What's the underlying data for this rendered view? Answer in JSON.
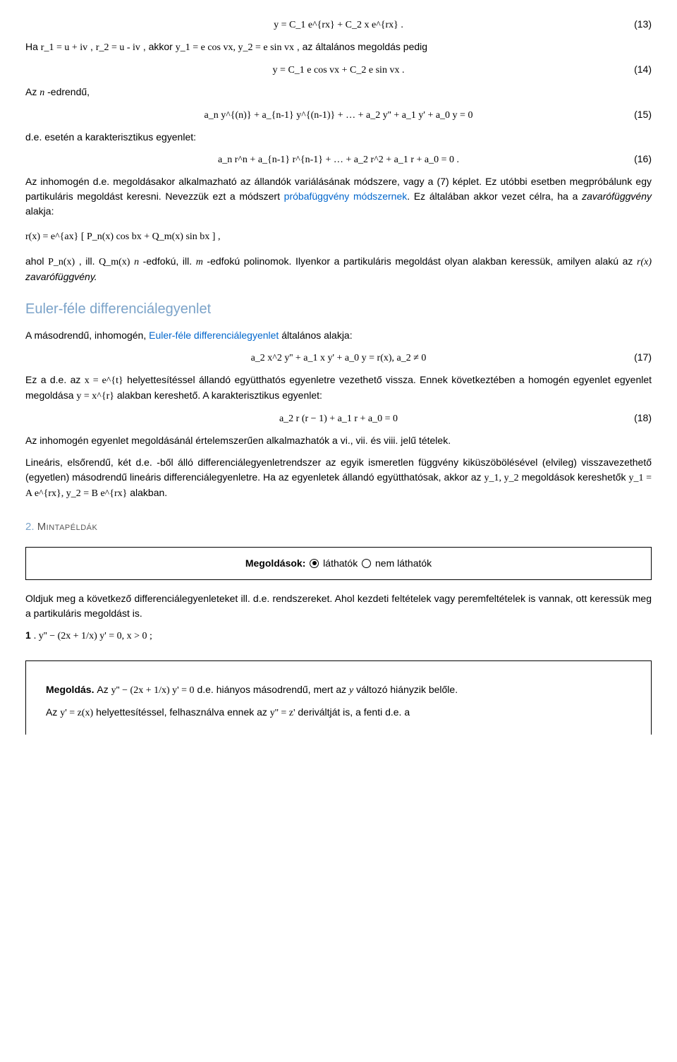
{
  "eq13": {
    "formula": "y = C_1 e^{rx} + C_2 x e^{rx} .",
    "num": "(13)"
  },
  "p_ha": {
    "t1": "Ha  ",
    "m1": "r_1 = u + iv",
    "t2": ",  ",
    "m2": "r_2 = u - iv",
    "t3": ",  akkor  ",
    "m3": "y_1 = e    cos vx,  y_2 = e    sin vx",
    "t4": ", az általános megoldás pedig"
  },
  "eq14": {
    "formula": "y = C_1 e    cos vx + C_2 e    sin vx .",
    "num": "(14)"
  },
  "p_n": {
    "t1": "Az  ",
    "m1": "n",
    "t2": " -edrendű,"
  },
  "eq15": {
    "formula": "a_n y^{(n)} + a_{n-1} y^{(n-1)} + … + a_2 y'' + a_1 y' + a_0 y = 0",
    "num": "(15)"
  },
  "p_de": {
    "t1": "d.e. esetén a karakterisztikus egyenlet:"
  },
  "eq16": {
    "formula": "a_n r^n + a_{n-1} r^{n-1} + … + a_2 r^2 + a_1 r + a_0 = 0 .",
    "num": "(16)"
  },
  "p_inhom": "Az inhomogén d.e. megoldásakor alkalmazható az állandók variálásának módszere, vagy a  (7)  képlet. Ez utóbbi esetben megpróbálunk egy partikuláris megoldást keresni. Nevezzük ezt a módszert ",
  "link_probe": "próbafüggvény módszernek",
  "p_inhom2": ". Ez általában akkor vezet célra, ha a ",
  "em_zav": "zavarófüggvény",
  "p_inhom3": " alakja:",
  "eq_rx": {
    "formula": "r(x) = e^{ax} [ P_n(x) cos bx + Q_m(x) sin bx ] ,"
  },
  "p_ahol": {
    "t1": "ahol  ",
    "m1": "P_n(x)",
    "t2": ",  ill.  ",
    "m2": "Q_m(x)",
    "t3": "   ",
    "m3": "n",
    "t4": " -edfokú, ill.  ",
    "m4": "m",
    "t5": " -edfokú polinomok. Ilyenkor a partikuláris megoldást olyan alakban keressük, amilyen alakú az  ",
    "m5": "r(x)",
    "t6": "  ",
    "em": "zavarófüggvény."
  },
  "h_euler": "Euler-féle differenciálegyenlet",
  "p_euler1_a": "A másodrendű, inhomogén, ",
  "link_euler": "Euler-féle differenciálegyenlet",
  "p_euler1_b": " általános alakja:",
  "eq17": {
    "formula": "a_2 x^2 y'' + a_1 x y' + a_0 y = r(x),   a_2 ≠ 0",
    "num": "(17)"
  },
  "p_eze": {
    "t1": "Ez  a  d.e.  az  ",
    "m1": "x = e^{t}",
    "t2": "  helyettesítéssel  állandó  együtthatós  egyenletre  vezethető  vissza.  Ennek  következtében a homogén egyenlet egyenlet megoldása  ",
    "m2": "y = x^{r}",
    "t3": "  alakban kereshető. A karakterisztikus egyenlet:"
  },
  "eq18": {
    "formula": "a_2 r (r − 1) + a_1 r + a_0 = 0",
    "num": "(18)"
  },
  "p_last": "Az inhomogén egyenlet megoldásánál értelemszerűen alkalmazhatók a  vi.,  vii.  és  viii.  jelű tételek.",
  "p_lin": {
    "t1": "Lineáris,  elsőrendű,  két  d.e.  -ből  álló  differenciálegyenletrendszer  az  egyik  ismeretlen  függvény kiküszöbölésével (elvileg)   visszavezethető   (egyetlen)   másodrendű   lineáris   differenciálegyenletre.   Ha   az   egyenletek   állandó együtthatósak, akkor az  ",
    "m1": "y_1,  y_2",
    "t2": "  megoldások kereshetők  ",
    "m2": "y_1 = A e^{rx},  y_2 = B e^{rx}",
    "t3": "  alakban."
  },
  "sec_num": "2. ",
  "sec_title": "Mintapéldák",
  "box": {
    "lead": "Megoldások:  ",
    "opt1": "  láthatók  ",
    "opt2": " nem láthatók"
  },
  "p_oldjuk": "Oldjuk meg a következő differenciálegyenleteket ill. d.e. rendszereket.  Ahol kezdeti feltételek vagy peremfeltételek is vannak,  ott keressük meg a partikuláris megoldást is.",
  "ex1": {
    "num": "1",
    "formula": ". y'' − (2x + 1/x) y' = 0,    x > 0 ;"
  },
  "sol": {
    "lead": "Megoldás. ",
    "t1": "Az ",
    "m1": "y'' − (2x + 1/x) y' = 0",
    "t2": "  d.e. hiányos másodrendű, mert az  ",
    "m2": "y",
    "t3": "  változó hiányzik belőle.",
    "t4": "Az  ",
    "m3": "y' = z(x)",
    "t5": "  helyettesítéssel, felhasználva ennek az  ",
    "m4": "y'' = z'",
    "t6": "  deriváltját is, a fenti d.e. a"
  }
}
